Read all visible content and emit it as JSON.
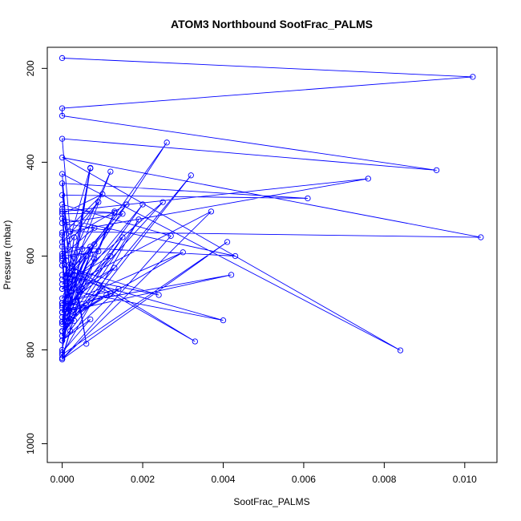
{
  "chart_data": {
    "type": "line",
    "title": "ATOM3 Northbound SootFrac_PALMS",
    "xlabel": "SootFrac_PALMS",
    "ylabel": "Pressure (mbar)",
    "xlim": [
      -0.00037,
      0.0108
    ],
    "ylim": [
      1040,
      155
    ],
    "y_reversed": true,
    "x_ticks": [
      0,
      0.002,
      0.004,
      0.006,
      0.008,
      0.01
    ],
    "x_tick_labels": [
      "0.000",
      "0.002",
      "0.004",
      "0.006",
      "0.008",
      "0.010"
    ],
    "y_ticks": [
      200,
      400,
      600,
      800,
      1000
    ],
    "y_tick_labels": [
      "200",
      "400",
      "600",
      "800",
      "1000"
    ],
    "grid": false,
    "series": [
      {
        "color": "#0000ff",
        "marker": "open-circle",
        "x": [
          0.0,
          0.0102,
          0.0,
          0.0,
          0.0093,
          0.0,
          0.0002,
          0.0104,
          0.0,
          0.0084,
          0.0,
          0.0002,
          0.0,
          0.0061,
          0.0,
          0.0006,
          0.0,
          0.0076,
          0.0,
          0.0002,
          0.0,
          0.0043,
          0.0,
          0.0001,
          0.0,
          0.0033,
          0.0,
          0.0024,
          0.0,
          0.004,
          0.0,
          0.0026,
          0.0,
          0.002,
          0.0,
          0.0003,
          0.0,
          0.0032,
          0.0,
          0.0007,
          0.0,
          0.0001,
          0.0,
          0.0005,
          0.0,
          0.0027,
          0.0,
          0.0002,
          0.0,
          0.0013,
          0.0,
          0.001,
          0.0,
          0.0,
          0.0009,
          0.0,
          0.0008,
          0.0,
          0.0012,
          0.0,
          0.0013,
          0.0,
          0.0007,
          0.0,
          0.0009,
          0.0,
          0.0016,
          0.0,
          0.0015,
          0.0,
          0.0011,
          0.0,
          0.0012,
          0.0,
          0.0008,
          0.0,
          0.0003,
          0.0,
          0.0006,
          0.0,
          0.001,
          0.0,
          0.0013,
          0.0,
          0.0005,
          0.0,
          0.0007,
          0.0,
          0.0019,
          0.0,
          0.0041,
          0.0,
          0.0037,
          0.0,
          0.0025,
          0.0,
          0.0042,
          0.0,
          0.003,
          0.0,
          0.0007,
          0.0,
          0.0003,
          0.0,
          0.0006,
          0.0,
          0.0011,
          0.0,
          0.0015,
          0.0,
          0.0007,
          0.0,
          0.0014,
          0.0,
          0.0003,
          0.0,
          0.0012,
          0.0,
          0.0008,
          0.0
        ],
        "y": [
          178,
          218,
          285,
          301,
          417,
          350,
          548,
          560,
          390,
          801,
          425,
          648,
          445,
          477,
          470,
          787,
          505,
          435,
          550,
          700,
          520,
          600,
          580,
          720,
          610,
          782,
          620,
          683,
          640,
          737,
          670,
          358,
          700,
          490,
          730,
          738,
          760,
          428,
          780,
          735,
          805,
          610,
          817,
          670,
          820,
          557,
          490,
          760,
          500,
          508,
          510,
          468,
          555,
          605,
          590,
          600,
          540,
          650,
          420,
          690,
          625,
          710,
          580,
          595,
          485,
          570,
          490,
          650,
          510,
          530,
          545,
          660,
          600,
          700,
          575,
          740,
          560,
          720,
          600,
          740,
          670,
          760,
          505,
          780,
          585,
          800,
          413,
          770,
          522,
          810,
          570,
          820,
          505,
          670,
          485,
          720,
          640,
          705,
          592,
          740,
          412,
          620,
          715,
          700,
          705,
          720,
          683,
          740,
          560,
          760,
          595,
          780,
          670,
          700,
          640,
          720,
          680,
          745,
          606,
          760
        ]
      }
    ]
  }
}
